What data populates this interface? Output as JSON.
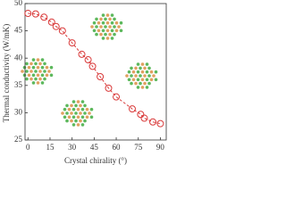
{
  "chart_data": {
    "type": "line",
    "xlabel": "Crystal chirality (°)",
    "ylabel": "Thermal conductivity (W/mK)",
    "x": [
      0,
      5.2,
      10.9,
      16.1,
      19.1,
      23.4,
      30,
      36.6,
      40.9,
      43.9,
      49.1,
      54.8,
      60,
      70.9,
      76.6,
      79.1,
      84.9,
      90
    ],
    "series": [
      {
        "color": "#d93a3a",
        "line_style": "dashed",
        "values": [
          48.2,
          48.1,
          47.5,
          46.6,
          45.8,
          45,
          42.8,
          40.7,
          39.7,
          38.5,
          36.6,
          34.5,
          32.9,
          30.7,
          29.7,
          29,
          28.3,
          28.0
        ]
      }
    ],
    "xlim": [
      -2,
      94
    ],
    "xticks": [
      0,
      15,
      30,
      45,
      60,
      75,
      90
    ],
    "ylim": [
      25,
      50
    ],
    "yticks": [
      25,
      30,
      35,
      40,
      45,
      50
    ]
  }
}
